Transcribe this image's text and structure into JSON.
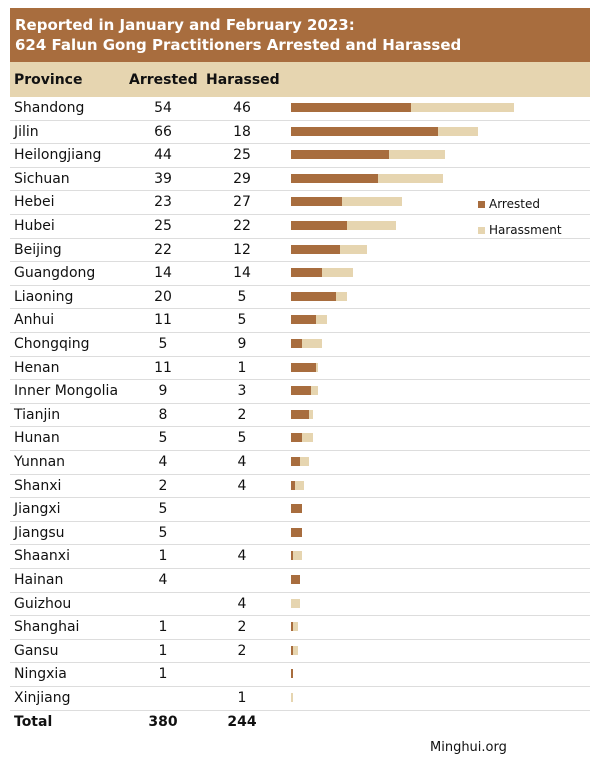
{
  "title_line1": "Reported in January and February 2023:",
  "title_line2": "624 Falun Gong Practitioners Arrested and Harassed",
  "headers": {
    "province": "Province",
    "arrested": "Arrested",
    "harassed": "Harassed"
  },
  "legend": {
    "arrested": "Arrested",
    "harassed": "Harassment"
  },
  "colors": {
    "arrested": "#a86d3e",
    "harassed": "#e6d5b0"
  },
  "source": "Minghui.org",
  "total": {
    "label": "Total",
    "arrested": "380",
    "harassed": "244"
  },
  "chart_data": {
    "type": "bar",
    "stacked": true,
    "orientation": "horizontal",
    "categories": [
      "Shandong",
      "Jilin",
      "Heilongjiang",
      "Sichuan",
      "Hebei",
      "Hubei",
      "Beijing",
      "Guangdong",
      "Liaoning",
      "Anhui",
      "Chongqing",
      "Henan",
      "Inner Mongolia",
      "Tianjin",
      "Hunan",
      "Yunnan",
      "Shanxi",
      "Jiangxi",
      "Jiangsu",
      "Shaanxi",
      "Hainan",
      "Guizhou",
      "Shanghai",
      "Gansu",
      "Ningxia",
      "Xinjiang"
    ],
    "series": [
      {
        "name": "Arrested",
        "values": [
          54,
          66,
          44,
          39,
          23,
          25,
          22,
          14,
          20,
          11,
          5,
          11,
          9,
          8,
          5,
          4,
          2,
          5,
          5,
          1,
          4,
          null,
          1,
          1,
          1,
          null
        ]
      },
      {
        "name": "Harassment",
        "values": [
          46,
          18,
          25,
          29,
          27,
          22,
          12,
          14,
          5,
          5,
          9,
          1,
          3,
          2,
          5,
          4,
          4,
          null,
          null,
          4,
          null,
          4,
          2,
          2,
          null,
          1
        ]
      }
    ],
    "legend_position": "right"
  }
}
